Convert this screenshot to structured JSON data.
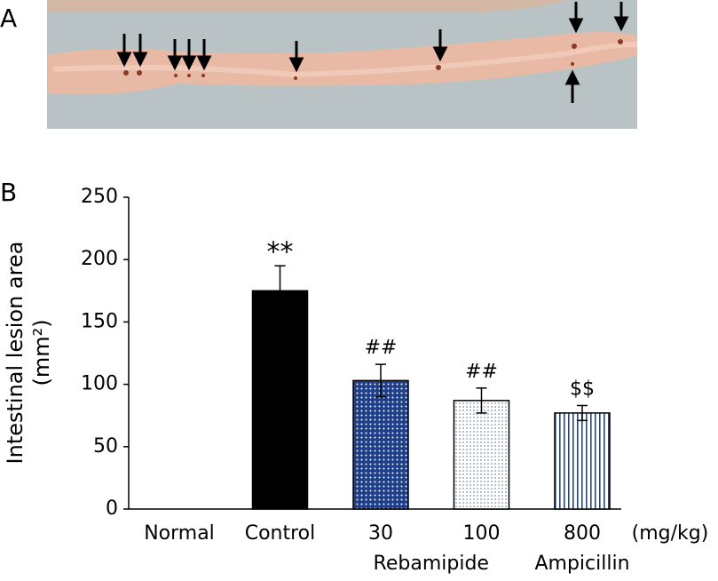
{
  "panel_labels": [
    "A",
    "B"
  ],
  "chart_data": {
    "type": "bar",
    "ylabel_lines": [
      "Intestinal lesion area",
      "(mm²)"
    ],
    "categories": [
      "Normal",
      "Control",
      "30",
      "100",
      "800"
    ],
    "values": [
      0,
      175,
      103,
      87,
      77
    ],
    "errors": [
      null,
      20,
      13,
      10,
      6
    ],
    "annotations": [
      null,
      "**",
      "##",
      "##",
      "$$"
    ],
    "x_unit": "(mg/kg)",
    "groups": [
      {
        "name": "Rebamipide",
        "categories": [
          "30",
          "100"
        ]
      },
      {
        "name": "Ampicillin",
        "categories": [
          "800"
        ]
      }
    ],
    "colors": [
      "#000000",
      "#000000",
      "#1f3f8a",
      "#7a95b8",
      "#27477e"
    ],
    "patterns": [
      "solid",
      "solid",
      "dots-dark",
      "dots-light",
      "vstripes"
    ],
    "ylim": [
      0,
      250
    ],
    "yticks": [
      0,
      50,
      100,
      150,
      200,
      250
    ]
  }
}
